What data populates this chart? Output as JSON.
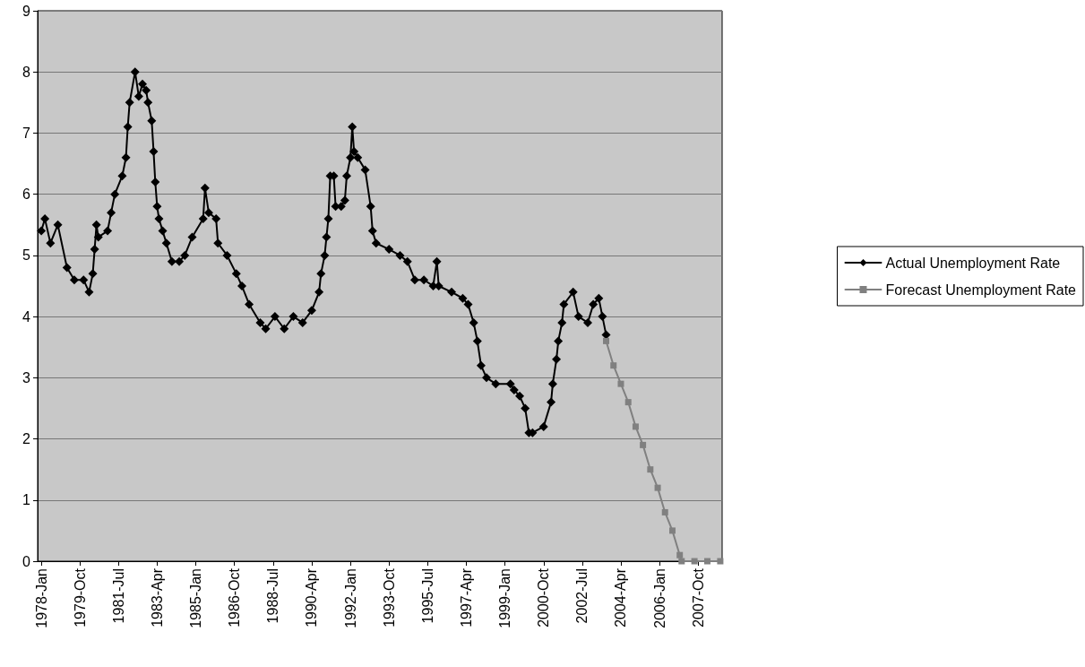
{
  "chart_data": {
    "type": "line",
    "legend": "right",
    "grid": "y",
    "line_style": "solid",
    "xlim": [
      "1977-11",
      "2008-11"
    ],
    "xticks": [
      {
        "value": "1978-01",
        "label": "1978-Jan"
      },
      {
        "value": "1979-10",
        "label": "1979-Oct"
      },
      {
        "value": "1981-07",
        "label": "1981-Jul"
      },
      {
        "value": "1983-04",
        "label": "1983-Apr"
      },
      {
        "value": "1985-01",
        "label": "1985-Jan"
      },
      {
        "value": "1986-10",
        "label": "1986-Oct"
      },
      {
        "value": "1988-07",
        "label": "1988-Jul"
      },
      {
        "value": "1990-04",
        "label": "1990-Apr"
      },
      {
        "value": "1992-01",
        "label": "1992-Jan"
      },
      {
        "value": "1993-10",
        "label": "1993-Oct"
      },
      {
        "value": "1995-07",
        "label": "1995-Jul"
      },
      {
        "value": "1997-04",
        "label": "1997-Apr"
      },
      {
        "value": "1999-01",
        "label": "1999-Jan"
      },
      {
        "value": "2000-10",
        "label": "2000-Oct"
      },
      {
        "value": "2002-07",
        "label": "2002-Jul"
      },
      {
        "value": "2004-04",
        "label": "2004-Apr"
      },
      {
        "value": "2006-01",
        "label": "2006-Jan"
      },
      {
        "value": "2007-10",
        "label": "2007-Oct"
      }
    ],
    "ylim": [
      0,
      9
    ],
    "yticks": [
      0,
      1,
      2,
      3,
      4,
      5,
      6,
      7,
      8,
      9
    ],
    "series": [
      {
        "name": "Actual Unemployment Rate",
        "color": "#000000",
        "marker": "diamond",
        "x": [
          "1978-01",
          "1978-03",
          "1978-06",
          "1978-10",
          "1979-03",
          "1979-07",
          "1979-12",
          "1980-03",
          "1980-05",
          "1980-06",
          "1980-07",
          "1980-08",
          "1981-01",
          "1981-03",
          "1981-05",
          "1981-09",
          "1981-11",
          "1981-12",
          "1982-01",
          "1982-04",
          "1982-06",
          "1982-08",
          "1982-10",
          "1982-11",
          "1983-01",
          "1983-02",
          "1983-03",
          "1983-04",
          "1983-05",
          "1983-07",
          "1983-09",
          "1983-12",
          "1984-04",
          "1984-07",
          "1984-11",
          "1985-05",
          "1985-06",
          "1985-08",
          "1985-12",
          "1986-01",
          "1986-06",
          "1986-11",
          "1987-02",
          "1987-06",
          "1987-12",
          "1988-03",
          "1988-08",
          "1989-01",
          "1989-06",
          "1989-11",
          "1990-04",
          "1990-08",
          "1990-09",
          "1990-11",
          "1990-12",
          "1991-01",
          "1991-02",
          "1991-04",
          "1991-05",
          "1991-08",
          "1991-10",
          "1991-11",
          "1992-01",
          "1992-02",
          "1992-03",
          "1992-05",
          "1992-09",
          "1992-12",
          "1993-01",
          "1993-03",
          "1993-10",
          "1994-04",
          "1994-08",
          "1994-12",
          "1995-05",
          "1995-10",
          "1995-12",
          "1996-01",
          "1996-08",
          "1997-02",
          "1997-05",
          "1997-08",
          "1997-10",
          "1997-12",
          "1998-03",
          "1998-08",
          "1999-04",
          "1999-06",
          "1999-09",
          "1999-12",
          "2000-02",
          "2000-04",
          "2000-10",
          "2001-02",
          "2001-03",
          "2001-05",
          "2001-06",
          "2001-08",
          "2001-09",
          "2002-02",
          "2002-05",
          "2002-10",
          "2003-01",
          "2003-04",
          "2003-06",
          "2003-08"
        ],
        "values": [
          5.4,
          5.6,
          5.2,
          5.5,
          4.8,
          4.6,
          4.6,
          4.4,
          4.7,
          5.1,
          5.5,
          5.3,
          5.4,
          5.7,
          6.0,
          6.3,
          6.6,
          7.1,
          7.5,
          8.0,
          7.6,
          7.8,
          7.7,
          7.5,
          7.2,
          6.7,
          6.2,
          5.8,
          5.6,
          5.4,
          5.2,
          4.9,
          4.9,
          5.0,
          5.3,
          5.6,
          6.1,
          5.7,
          5.6,
          5.2,
          5.0,
          4.7,
          4.5,
          4.2,
          3.9,
          3.8,
          4.0,
          3.8,
          4.0,
          3.9,
          4.1,
          4.4,
          4.7,
          5.0,
          5.3,
          5.6,
          6.3,
          6.3,
          5.8,
          5.8,
          5.9,
          6.3,
          6.6,
          7.1,
          6.7,
          6.6,
          6.4,
          5.8,
          5.4,
          5.2,
          5.1,
          5.0,
          4.9,
          4.6,
          4.6,
          4.5,
          4.9,
          4.5,
          4.4,
          4.3,
          4.2,
          3.9,
          3.6,
          3.2,
          3.0,
          2.9,
          2.9,
          2.8,
          2.7,
          2.5,
          2.1,
          2.1,
          2.2,
          2.6,
          2.9,
          3.3,
          3.6,
          3.9,
          4.2,
          4.4,
          4.0,
          3.9,
          4.2,
          4.3,
          4.0,
          3.7
        ]
      },
      {
        "name": "Forecast Unemployment Rate",
        "color": "#808080",
        "marker": "square",
        "x": [
          "2003-08",
          "2003-12",
          "2004-04",
          "2004-08",
          "2004-12",
          "2005-04",
          "2005-08",
          "2005-12",
          "2006-04",
          "2006-08",
          "2006-12",
          "2007-01",
          "2007-08",
          "2008-03",
          "2008-10"
        ],
        "values": [
          3.6,
          3.2,
          2.9,
          2.6,
          2.2,
          1.9,
          1.5,
          1.2,
          0.8,
          0.5,
          0.1,
          0.0,
          0.0,
          0.0,
          0.0
        ]
      }
    ]
  }
}
